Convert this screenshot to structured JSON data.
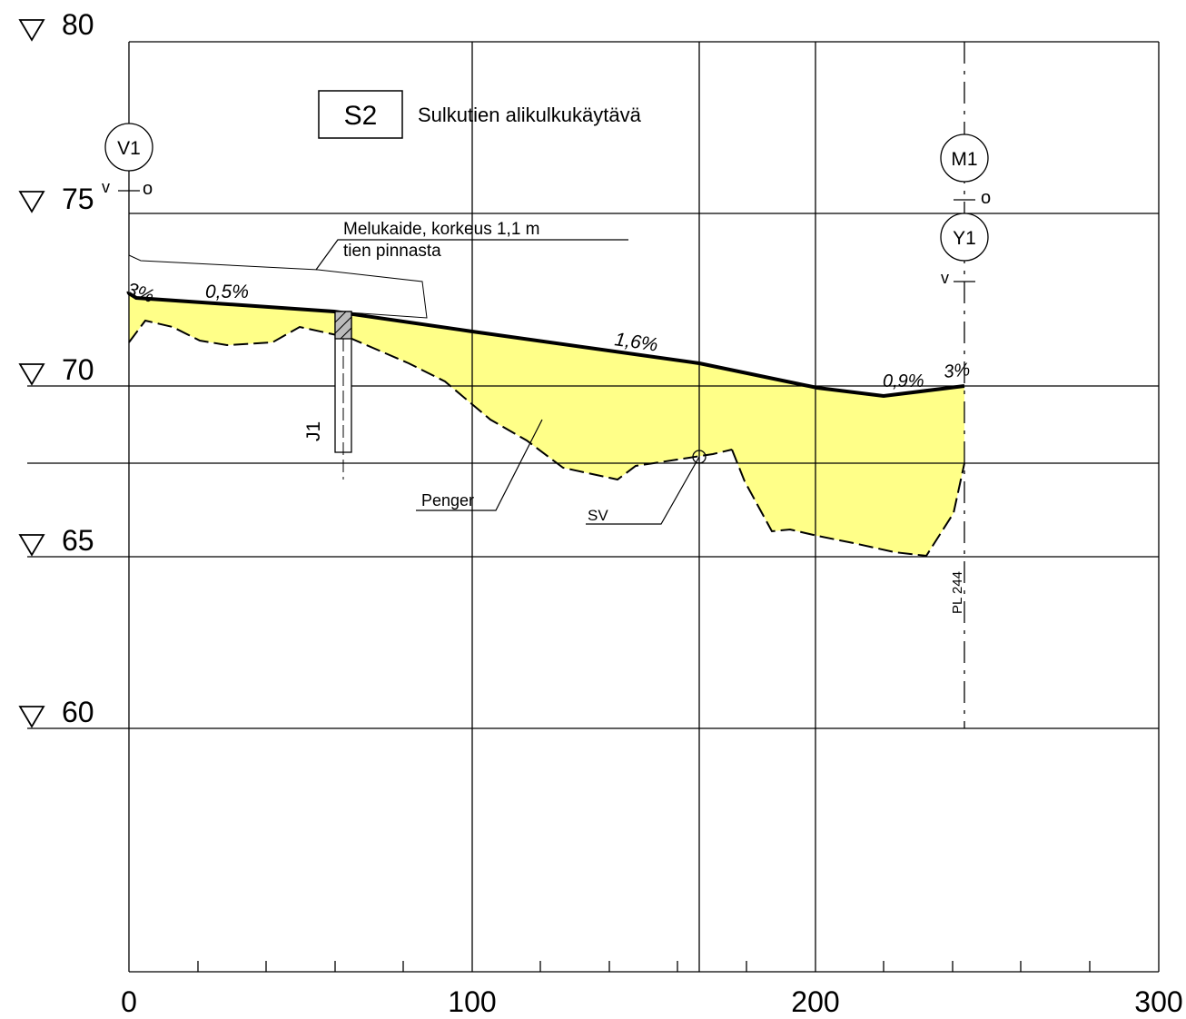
{
  "title": {
    "code": "S2",
    "text": "Sulkutien alikulkukäytävä"
  },
  "elevation_labels": [
    "80",
    "75",
    "70",
    "65",
    "60"
  ],
  "x_labels": [
    "0",
    "100",
    "200",
    "300"
  ],
  "markers": {
    "left_circle": "V1",
    "right_top_circle": "M1",
    "right_bottom_circle": "Y1",
    "v": "v",
    "o": "o"
  },
  "slopes": {
    "left_edge": "3%",
    "left": "0,5%",
    "middle": "1,6%",
    "right": "0,9%",
    "right_edge": "3%"
  },
  "annotations": {
    "noise_barrier_line1": "Melukaide, korkeus 1,1 m",
    "noise_barrier_line2": "tien pinnasta",
    "embankment": "Penger",
    "sv": "SV",
    "pile": "J1",
    "station": "PL 244"
  },
  "colors": {
    "fill": "#FFFF88",
    "line": "#000000"
  },
  "chart_data": {
    "type": "line",
    "xlim": [
      0,
      300
    ],
    "ylim": [
      60,
      80
    ],
    "x_ticks": [
      0,
      100,
      200,
      300
    ],
    "y_ticks": [
      80,
      75,
      70,
      65,
      60
    ],
    "series": [
      {
        "points": [
          [
            0,
            72.6
          ],
          [
            5,
            72.4
          ],
          [
            60,
            72.1
          ],
          [
            100,
            71.6
          ],
          [
            150,
            70.8
          ],
          [
            200,
            70.0
          ],
          [
            220,
            69.6
          ],
          [
            240,
            69.8
          ],
          [
            245,
            70.0
          ]
        ]
      },
      {
        "points": [
          [
            0,
            71.2
          ],
          [
            10,
            71.9
          ],
          [
            20,
            71.6
          ],
          [
            30,
            71.3
          ],
          [
            40,
            71.2
          ],
          [
            50,
            71.6
          ],
          [
            60,
            71.5
          ],
          [
            70,
            71.2
          ],
          [
            85,
            70.7
          ],
          [
            100,
            69.8
          ],
          [
            120,
            68.8
          ],
          [
            140,
            67.8
          ],
          [
            160,
            67.6
          ],
          [
            176,
            67.8
          ],
          [
            190,
            65.6
          ],
          [
            200,
            65.6
          ],
          [
            220,
            65.2
          ],
          [
            232,
            65.0
          ],
          [
            245,
            67.6
          ]
        ]
      }
    ]
  }
}
